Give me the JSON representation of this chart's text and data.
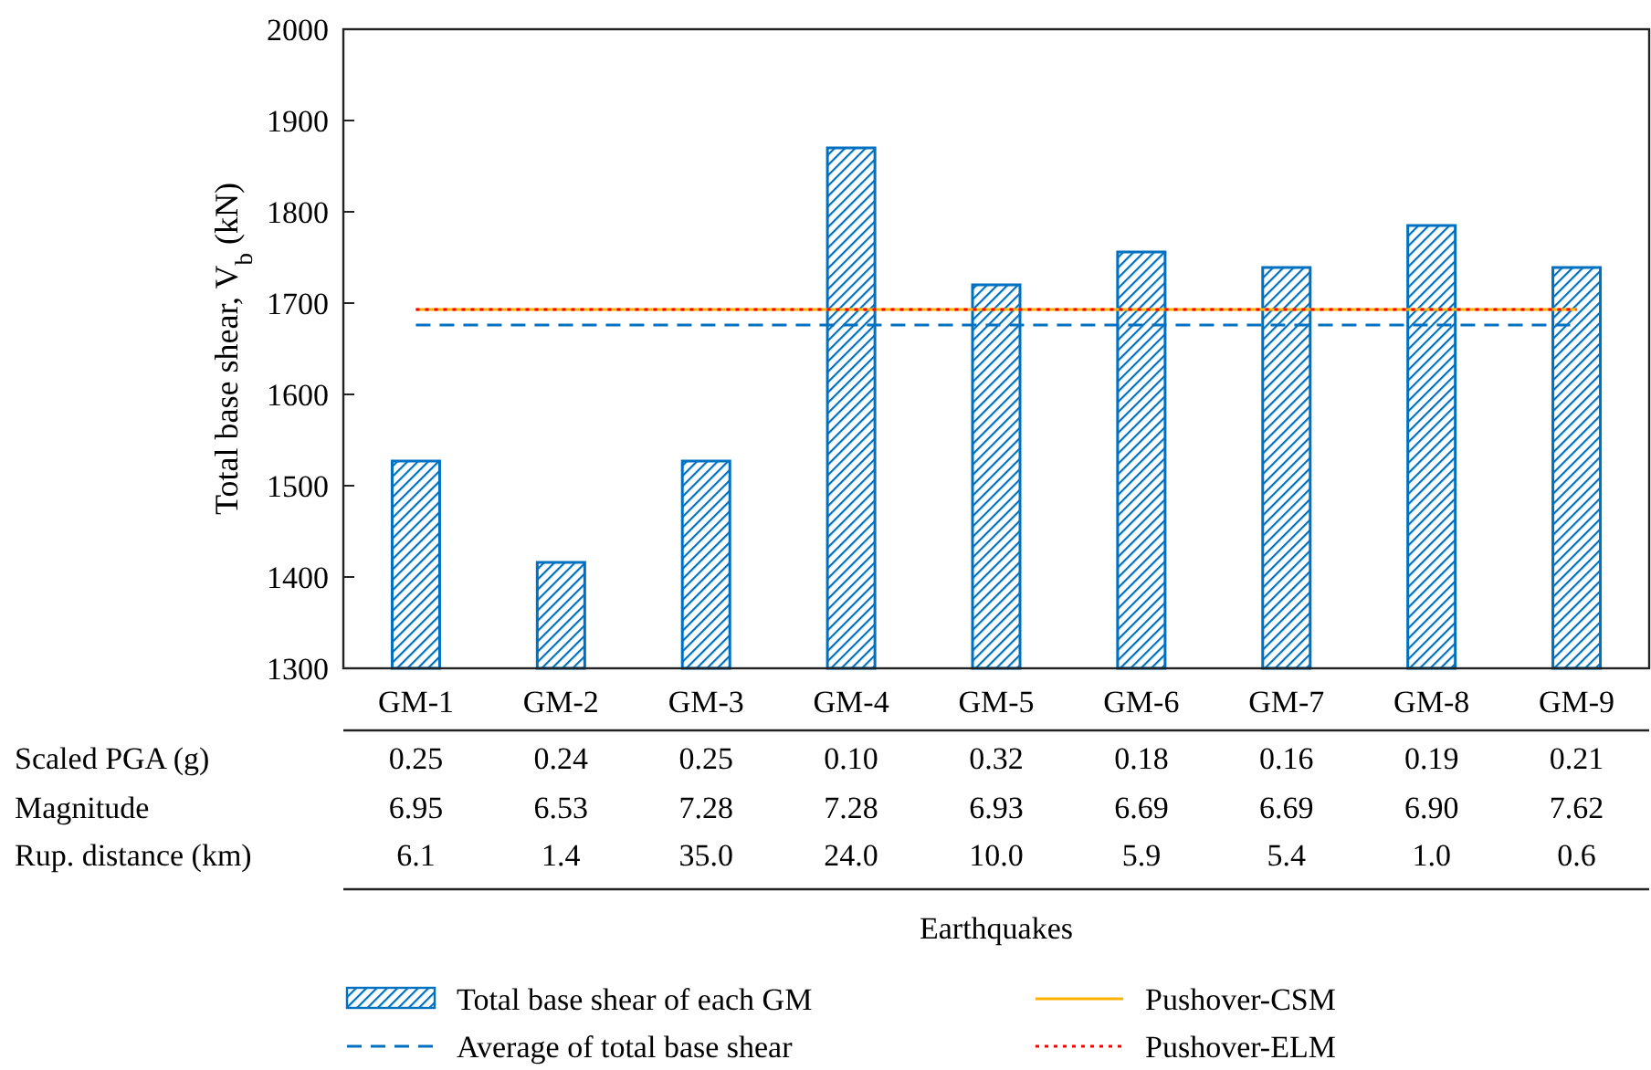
{
  "chart_data": {
    "type": "bar",
    "ylabel": "Total base shear, V$_{b}$ (kN)",
    "categories": [
      "GM-1",
      "GM-2",
      "GM-3",
      "GM-4",
      "GM-5",
      "GM-6",
      "GM-7",
      "GM-8",
      "GM-9"
    ],
    "series": [
      {
        "name": "Total base shear of each GM",
        "color": "#0070c0",
        "values": [
          1527,
          1416,
          1527,
          1870,
          1720,
          1756,
          1739,
          1785,
          1739
        ]
      },
      {
        "name": "Average of total base shear",
        "type": "line",
        "line_style": "dashed",
        "color": "#0070c0",
        "values": [
          1676,
          1676,
          1676,
          1676,
          1676,
          1676,
          1676,
          1676,
          1676
        ]
      },
      {
        "name": "Pushover-CSM",
        "type": "line",
        "line_style": "solid",
        "color": "#ffb000",
        "values": [
          1693,
          1693,
          1693,
          1693,
          1693,
          1693,
          1693,
          1693,
          1693
        ]
      },
      {
        "name": "Pushover-ELM",
        "type": "line",
        "line_style": "dotted",
        "color": "#ff0000",
        "values": [
          1693,
          1693,
          1693,
          1693,
          1693,
          1693,
          1693,
          1693,
          1693
        ]
      }
    ],
    "ylim": [
      1300,
      2000
    ],
    "yticks": [
      1300,
      1400,
      1500,
      1600,
      1700,
      1800,
      1900,
      2000
    ],
    "grid": false,
    "legend": "bottom",
    "annotations": [
      "Scaled PGA (g)",
      "0.25",
      "0.24",
      "0.25",
      "0.10",
      "0.32",
      "0.18",
      "0.16",
      "0.19",
      "0.21",
      "Magnitude",
      "6.95",
      "6.53",
      "7.28",
      "7.28",
      "6.93",
      "6.69",
      "6.69",
      "6.90",
      "7.62",
      "Rup. distance (km)",
      "6.1",
      "1.4",
      "35.0",
      "24.0",
      "10.0",
      "5.9",
      "5.4",
      "1.0",
      "0.6",
      "Earthquakes"
    ]
  }
}
